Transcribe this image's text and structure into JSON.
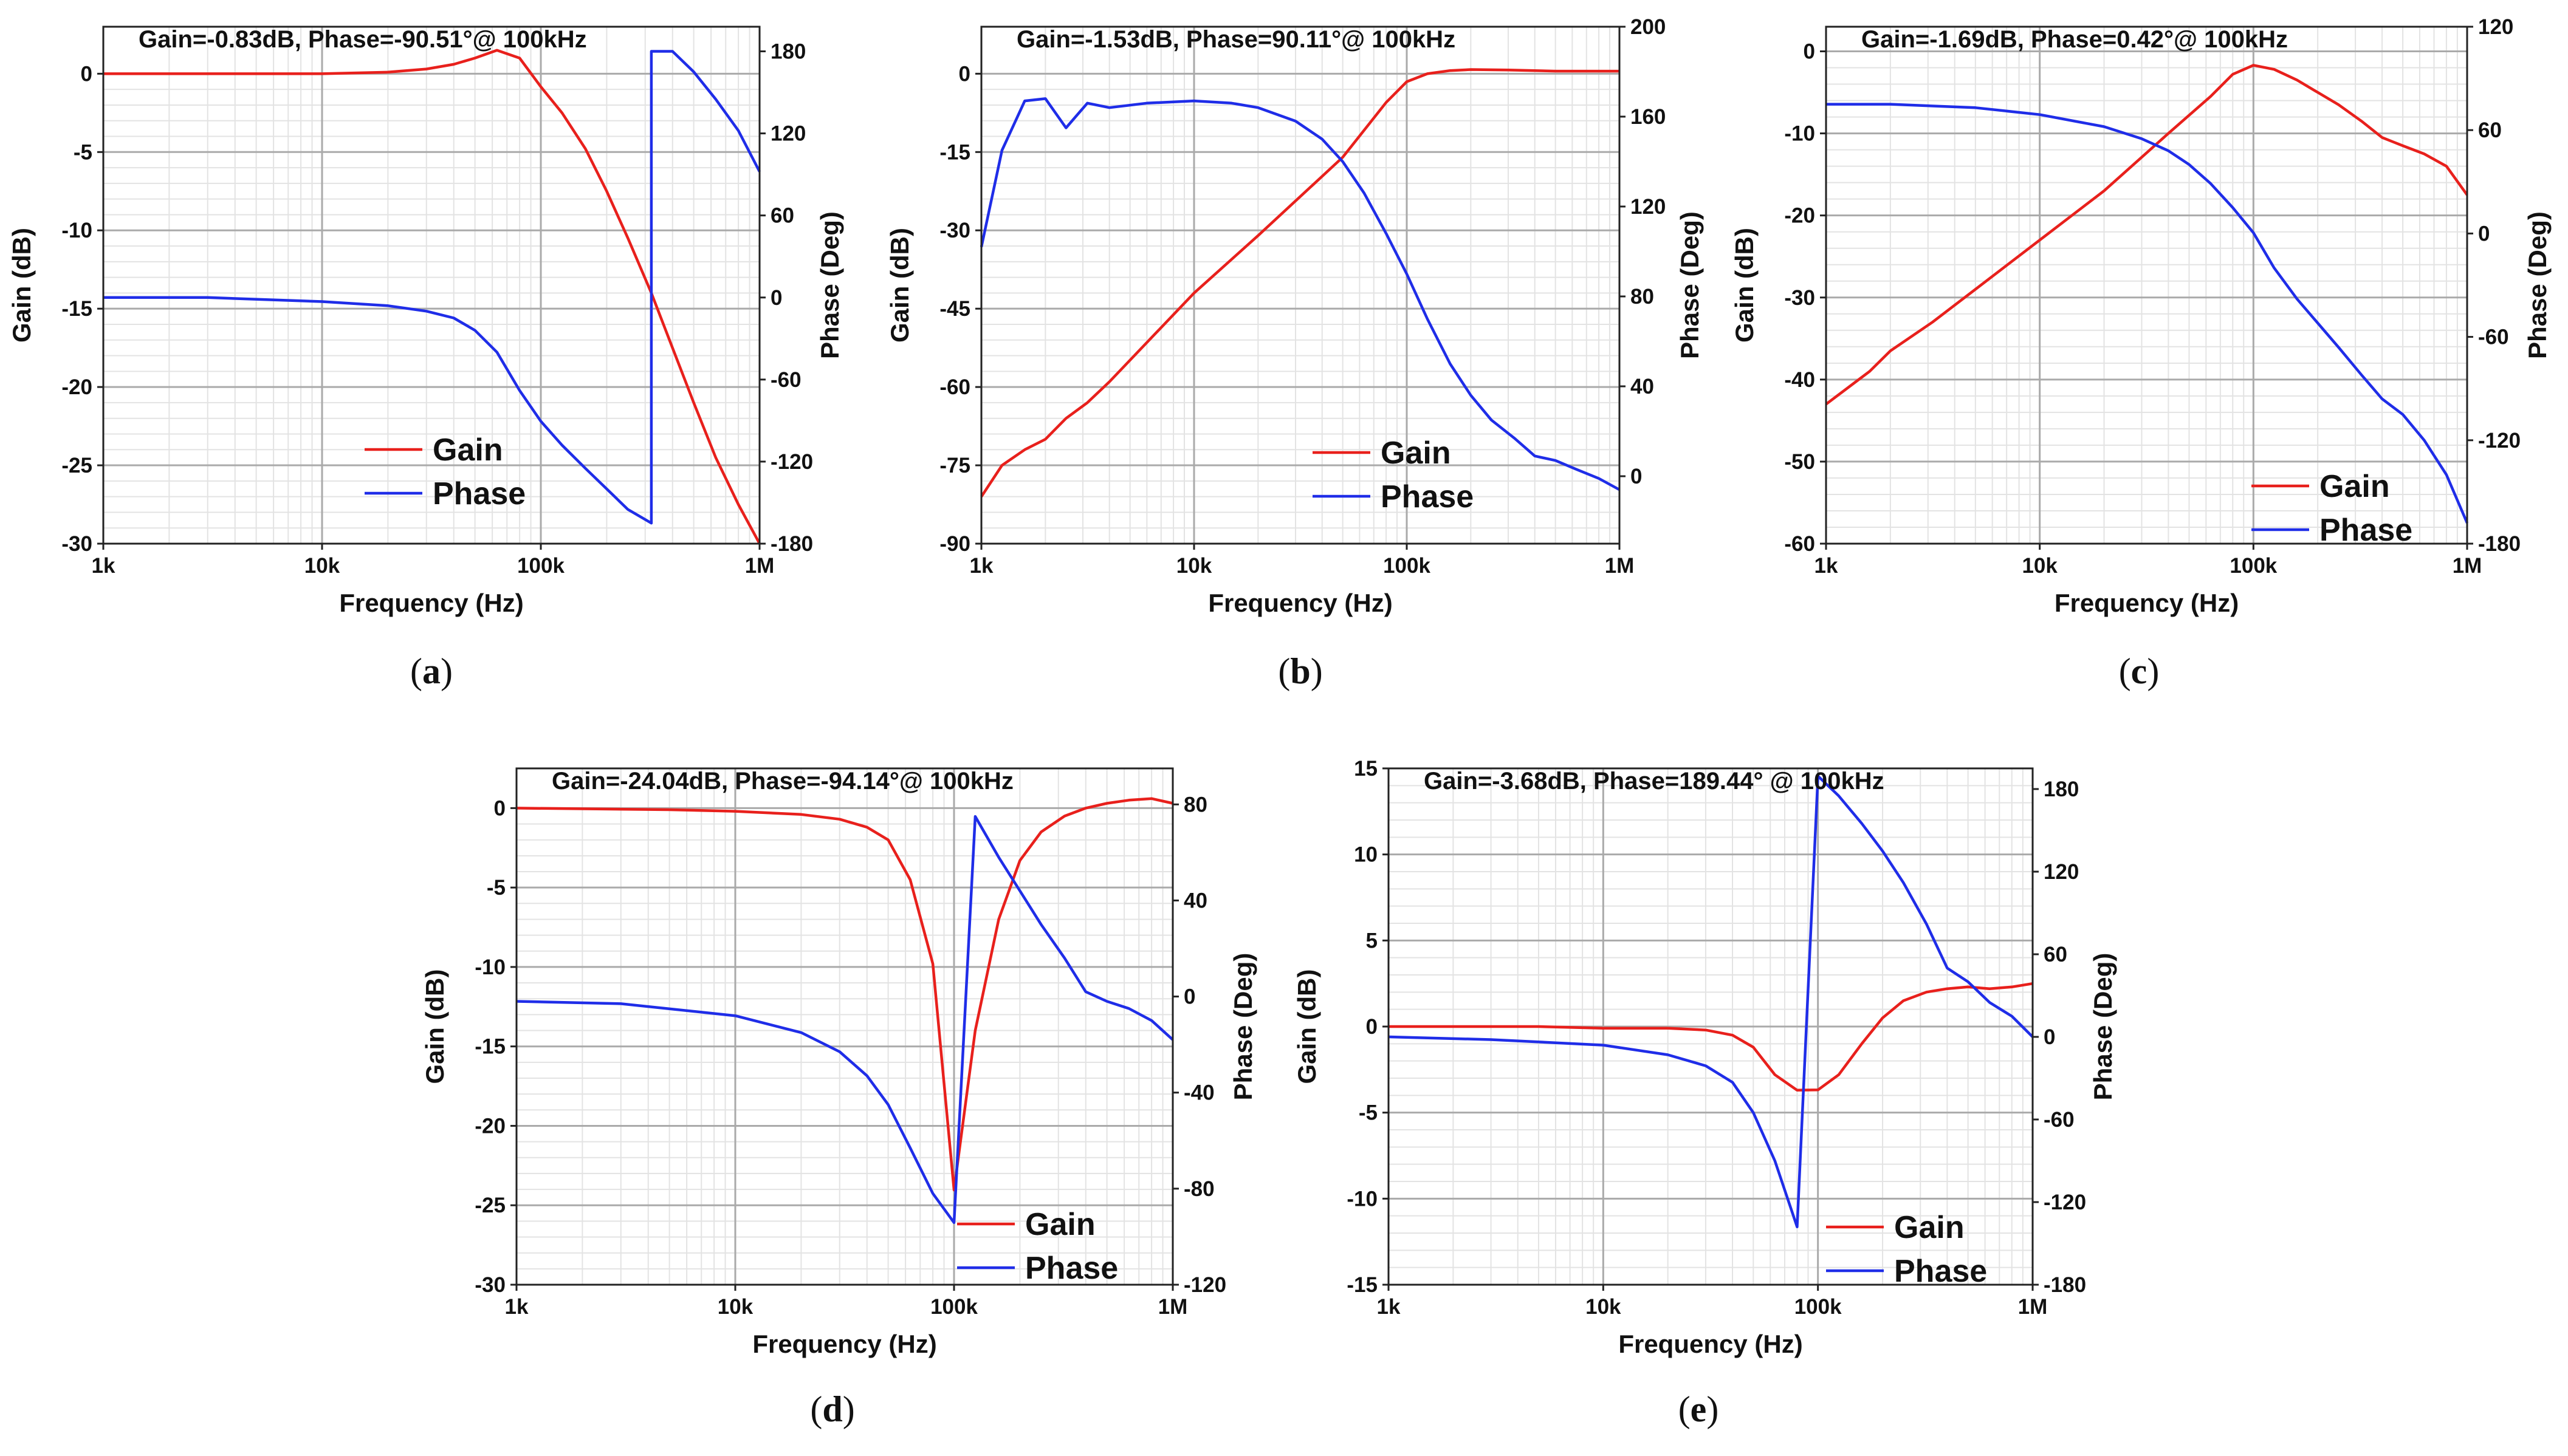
{
  "figure": {
    "label_prefix": "(",
    "label_suffix": ")"
  },
  "chart_data": [
    {
      "id": "a",
      "caption": "a",
      "type": "line",
      "annotation": "Gain=-0.83dB, Phase=-90.51°@ 100kHz",
      "xlabel": "Frequency (Hz)",
      "ylabel_left": "Gain (dB)",
      "ylabel_right": "Phase (Deg)",
      "xscale": "log",
      "xlim": [
        1000,
        1000000
      ],
      "xticks": [
        1000,
        10000,
        100000,
        1000000
      ],
      "xtick_labels": [
        "1k",
        "10k",
        "100k",
        "1M"
      ],
      "ylim_left": [
        -30,
        3
      ],
      "yticks_left": [
        0,
        -5,
        -10,
        -15,
        -20,
        -25,
        -30
      ],
      "ylim_right": [
        -180,
        198
      ],
      "yticks_right": [
        180,
        120,
        60,
        0,
        -60,
        -120,
        -180
      ],
      "grid": true,
      "legend_position": "bottom-center",
      "series": [
        {
          "name": "Gain",
          "color": "#e8201c",
          "axis": "left",
          "x": [
            1000,
            3000,
            10000,
            20000,
            30000,
            40000,
            50000,
            63000,
            80000,
            100000,
            125000,
            160000,
            200000,
            250000,
            320000,
            400000,
            500000,
            630000,
            800000,
            1000000
          ],
          "y": [
            0,
            0,
            0,
            0.1,
            0.3,
            0.6,
            1.0,
            1.5,
            1.0,
            -0.83,
            -2.5,
            -4.8,
            -7.5,
            -10.5,
            -14,
            -17.5,
            -21,
            -24.5,
            -27.5,
            -30
          ]
        },
        {
          "name": "Phase",
          "color": "#1f2de8",
          "axis": "right",
          "x": [
            1000,
            3000,
            10000,
            20000,
            30000,
            40000,
            50000,
            63000,
            80000,
            100000,
            125000,
            160000,
            200000,
            250000,
            320000,
            320000,
            400000,
            500000,
            630000,
            800000,
            1000000
          ],
          "y": [
            0,
            0,
            -3,
            -6,
            -10,
            -15,
            -24,
            -40,
            -68,
            -90.51,
            -108,
            -125,
            -140,
            -155,
            -165,
            180,
            180,
            165,
            145,
            122,
            92
          ]
        }
      ]
    },
    {
      "id": "b",
      "caption": "b",
      "type": "line",
      "annotation": "Gain=-1.53dB, Phase=90.11°@ 100kHz",
      "xlabel": "Frequency (Hz)",
      "ylabel_left": "Gain (dB)",
      "ylabel_right": "Phase (Deg)",
      "xscale": "log",
      "xlim": [
        1000,
        1000000
      ],
      "xticks": [
        1000,
        10000,
        100000,
        1000000
      ],
      "xtick_labels": [
        "1k",
        "10k",
        "100k",
        "1M"
      ],
      "ylim_left": [
        -90,
        9
      ],
      "yticks_left": [
        0,
        -15,
        -30,
        -45,
        -60,
        -75,
        -90
      ],
      "ylim_right": [
        -30,
        200
      ],
      "yticks_right": [
        200,
        160,
        120,
        80,
        40,
        0
      ],
      "grid": true,
      "legend_position": "bottom-center",
      "series": [
        {
          "name": "Gain",
          "color": "#e8201c",
          "axis": "left",
          "x": [
            1000,
            1250,
            1600,
            2000,
            2500,
            3150,
            4000,
            10000,
            20000,
            50000,
            80000,
            100000,
            125000,
            160000,
            200000,
            300000,
            500000,
            1000000
          ],
          "y": [
            -81,
            -75,
            -72,
            -70,
            -66,
            -63,
            -59,
            -42,
            -31,
            -16,
            -5.5,
            -1.53,
            0,
            0.6,
            0.8,
            0.7,
            0.5,
            0.5
          ]
        },
        {
          "name": "Phase",
          "color": "#1f2de8",
          "axis": "right",
          "x": [
            1000,
            1250,
            1600,
            2000,
            2500,
            3150,
            4000,
            6000,
            10000,
            15000,
            20000,
            30000,
            40000,
            50000,
            63000,
            80000,
            100000,
            125000,
            160000,
            200000,
            250000,
            320000,
            400000,
            500000,
            630000,
            800000,
            1000000
          ],
          "y": [
            102,
            145,
            167,
            168,
            155,
            166,
            164,
            166,
            167,
            166,
            164,
            158,
            150,
            140,
            126,
            108,
            90,
            70,
            50,
            36,
            25,
            17,
            9,
            7,
            3,
            -1,
            -6
          ]
        }
      ]
    },
    {
      "id": "c",
      "caption": "c",
      "type": "line",
      "annotation": "Gain=-1.69dB, Phase=0.42°@ 100kHz",
      "xlabel": "Frequency (Hz)",
      "ylabel_left": "Gain (dB)",
      "ylabel_right": "Phase (Deg)",
      "xscale": "log",
      "xlim": [
        1000,
        1000000
      ],
      "xticks": [
        1000,
        10000,
        100000,
        1000000
      ],
      "xtick_labels": [
        "1k",
        "10k",
        "100k",
        "1M"
      ],
      "ylim_left": [
        -60,
        3
      ],
      "yticks_left": [
        0,
        -10,
        -20,
        -30,
        -40,
        -50,
        -60
      ],
      "ylim_right": [
        -180,
        120
      ],
      "yticks_right": [
        120,
        60,
        0,
        -60,
        -120,
        -180
      ],
      "grid": true,
      "legend_position": "bottom-right",
      "series": [
        {
          "name": "Gain",
          "color": "#e8201c",
          "axis": "left",
          "x": [
            1000,
            1600,
            2000,
            3150,
            5000,
            10000,
            20000,
            40000,
            63000,
            80000,
            100000,
            125000,
            160000,
            200000,
            250000,
            320000,
            400000,
            500000,
            630000,
            800000,
            1000000
          ],
          "y": [
            -43,
            -39,
            -36.5,
            -33,
            -29,
            -23,
            -17,
            -10,
            -5.5,
            -2.8,
            -1.69,
            -2.2,
            -3.5,
            -5,
            -6.5,
            -8.5,
            -10.5,
            -11.5,
            -12.5,
            -14,
            -17.5
          ]
        },
        {
          "name": "Phase",
          "color": "#1f2de8",
          "axis": "right",
          "x": [
            1000,
            2000,
            5000,
            10000,
            20000,
            30000,
            40000,
            50000,
            63000,
            80000,
            100000,
            125000,
            160000,
            200000,
            250000,
            320000,
            400000,
            500000,
            630000,
            800000,
            1000000
          ],
          "y": [
            75,
            75,
            73,
            69,
            62,
            55,
            48,
            40,
            29,
            15,
            0.42,
            -20,
            -38,
            -52,
            -66,
            -82,
            -96,
            -105,
            -120,
            -140,
            -168
          ]
        }
      ]
    },
    {
      "id": "d",
      "caption": "d",
      "type": "line",
      "annotation": "Gain=-24.04dB, Phase=-94.14°@ 100kHz",
      "xlabel": "Frequency (Hz)",
      "ylabel_left": "Gain (dB)",
      "ylabel_right": "Phase (Deg)",
      "xscale": "log",
      "xlim": [
        1000,
        1000000
      ],
      "xticks": [
        1000,
        10000,
        100000,
        1000000
      ],
      "xtick_labels": [
        "1k",
        "10k",
        "100k",
        "1M"
      ],
      "ylim_left": [
        -30,
        2.5
      ],
      "yticks_left": [
        0,
        -5,
        -10,
        -15,
        -20,
        -25,
        -30
      ],
      "ylim_right": [
        -120,
        95
      ],
      "yticks_right": [
        80,
        40,
        0,
        -40,
        -80,
        -120
      ],
      "grid": true,
      "legend_position": "bottom-right",
      "series": [
        {
          "name": "Gain",
          "color": "#e8201c",
          "axis": "left",
          "x": [
            1000,
            5000,
            10000,
            20000,
            30000,
            40000,
            50000,
            63000,
            80000,
            100000,
            125000,
            160000,
            200000,
            250000,
            320000,
            400000,
            500000,
            630000,
            800000,
            1000000
          ],
          "y": [
            0,
            -0.1,
            -0.2,
            -0.4,
            -0.7,
            -1.2,
            -2,
            -4.5,
            -9.8,
            -24.04,
            -14,
            -7,
            -3.3,
            -1.5,
            -0.5,
            0,
            0.3,
            0.5,
            0.6,
            0.3
          ]
        },
        {
          "name": "Phase",
          "color": "#1f2de8",
          "axis": "right",
          "x": [
            1000,
            3000,
            10000,
            20000,
            30000,
            40000,
            50000,
            63000,
            80000,
            100000,
            100000,
            125000,
            160000,
            200000,
            250000,
            320000,
            400000,
            500000,
            630000,
            800000,
            1000000
          ],
          "y": [
            -2,
            -3,
            -8,
            -15,
            -23,
            -33,
            -45,
            -63,
            -82,
            -94.14,
            -94.14,
            75,
            58,
            44,
            30,
            16,
            2,
            -2,
            -5,
            -10,
            -18
          ]
        }
      ]
    },
    {
      "id": "e",
      "caption": "e",
      "type": "line",
      "annotation": "Gain=-3.68dB, Phase=189.44° @ 100kHz",
      "xlabel": "Frequency (Hz)",
      "ylabel_left": "Gain (dB)",
      "ylabel_right": "Phase (Deg)",
      "xscale": "log",
      "xlim": [
        1000,
        1000000
      ],
      "xticks": [
        1000,
        10000,
        100000,
        1000000
      ],
      "xtick_labels": [
        "1k",
        "10k",
        "100k",
        "1M"
      ],
      "ylim_left": [
        -15,
        15
      ],
      "yticks_left": [
        15,
        10,
        5,
        0,
        -5,
        -10,
        -15
      ],
      "ylim_right": [
        -180,
        195
      ],
      "yticks_right": [
        180,
        120,
        60,
        0,
        -60,
        -120,
        -180
      ],
      "grid": true,
      "legend_position": "bottom-center",
      "series": [
        {
          "name": "Gain",
          "color": "#e8201c",
          "axis": "left",
          "x": [
            1000,
            5000,
            10000,
            20000,
            30000,
            40000,
            50000,
            63000,
            80000,
            100000,
            125000,
            160000,
            200000,
            250000,
            320000,
            400000,
            500000,
            630000,
            800000,
            1000000
          ],
          "y": [
            0,
            0,
            -0.1,
            -0.1,
            -0.2,
            -0.5,
            -1.2,
            -2.8,
            -3.7,
            -3.68,
            -2.8,
            -1,
            0.5,
            1.5,
            2,
            2.2,
            2.3,
            2.2,
            2.3,
            2.5
          ]
        },
        {
          "name": "Phase",
          "color": "#1f2de8",
          "axis": "right",
          "x": [
            1000,
            3000,
            10000,
            20000,
            30000,
            40000,
            50000,
            63000,
            80000,
            100000,
            125000,
            160000,
            200000,
            250000,
            320000,
            400000,
            500000,
            630000,
            800000,
            1000000
          ],
          "y": [
            0,
            -2,
            -6,
            -13,
            -21,
            -33,
            -55,
            -90,
            -138,
            189.44,
            175,
            155,
            135,
            112,
            82,
            50,
            40,
            25,
            15,
            0
          ]
        }
      ]
    }
  ]
}
